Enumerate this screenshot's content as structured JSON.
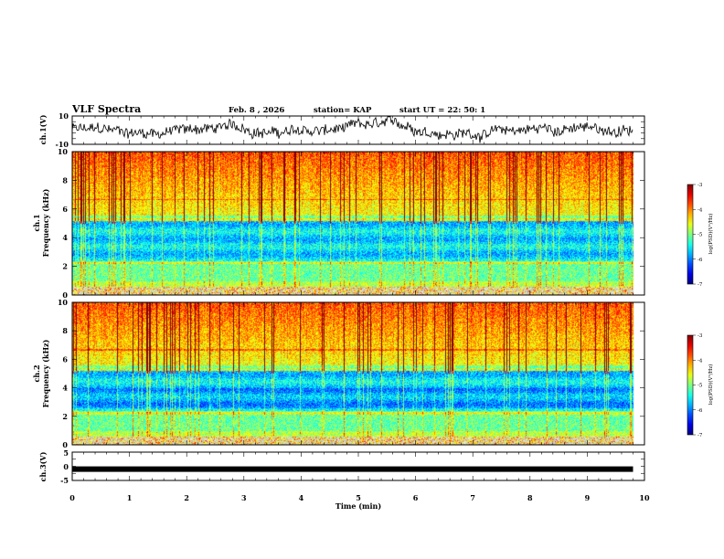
{
  "header": {
    "title": "VLF Spectra",
    "date": "Feb. 8  , 2026",
    "station": "station= KAP",
    "start": "start  UT  =   22: 50: 1"
  },
  "chart_data": [
    {
      "type": "line",
      "name": "ch1-waveform",
      "ylabel": "ch.1(V)",
      "yticks": [
        "10",
        "-10"
      ],
      "ylim": [
        -10,
        10
      ],
      "xlim": [
        0,
        10
      ],
      "x_end": 9.8
    },
    {
      "type": "heatmap",
      "name": "ch1-spectrogram",
      "ylabel": "ch.1 Frequency (kHz)",
      "yticks": [
        "10",
        "8",
        "6",
        "4",
        "2",
        "0"
      ],
      "ylim": [
        0,
        10
      ],
      "xlim": [
        0,
        10
      ],
      "colorbar": {
        "label": "log(PSD)(V²/Hz)",
        "ticks": [
          "-3",
          "-4",
          "-5",
          "-6",
          "-7"
        ],
        "range": [
          -7,
          -3
        ]
      }
    },
    {
      "type": "heatmap",
      "name": "ch2-spectrogram",
      "ylabel": "ch.2 Frequency (kHz)",
      "yticks": [
        "10",
        "8",
        "6",
        "4",
        "2",
        "0"
      ],
      "ylim": [
        0,
        10
      ],
      "xlim": [
        0,
        10
      ],
      "colorbar": {
        "label": "log(PSD)(V²/Hz)",
        "ticks": [
          "-3",
          "-4",
          "-5",
          "-6",
          "-7"
        ],
        "range": [
          -7,
          -3
        ]
      }
    },
    {
      "type": "line",
      "name": "ch3-waveform",
      "ylabel": "ch.3(V)",
      "yticks": [
        "5",
        "0",
        "-5"
      ],
      "ylim": [
        -5,
        5
      ],
      "xlim": [
        0,
        10
      ],
      "constant_value": -1.0
    }
  ],
  "xaxis": {
    "label": "Time  (min)",
    "ticks": [
      "0",
      "1",
      "2",
      "3",
      "4",
      "5",
      "6",
      "7",
      "8",
      "9",
      "10"
    ]
  },
  "labels": {
    "ch1_ylabel_line1": "ch.1",
    "ch1_ylabel_line2": "Frequency  (kHz)",
    "ch2_ylabel_line1": "ch.2",
    "ch2_ylabel_line2": "Frequency  (kHz)",
    "cb_label": "log(PSD)(V²/Hz)"
  }
}
